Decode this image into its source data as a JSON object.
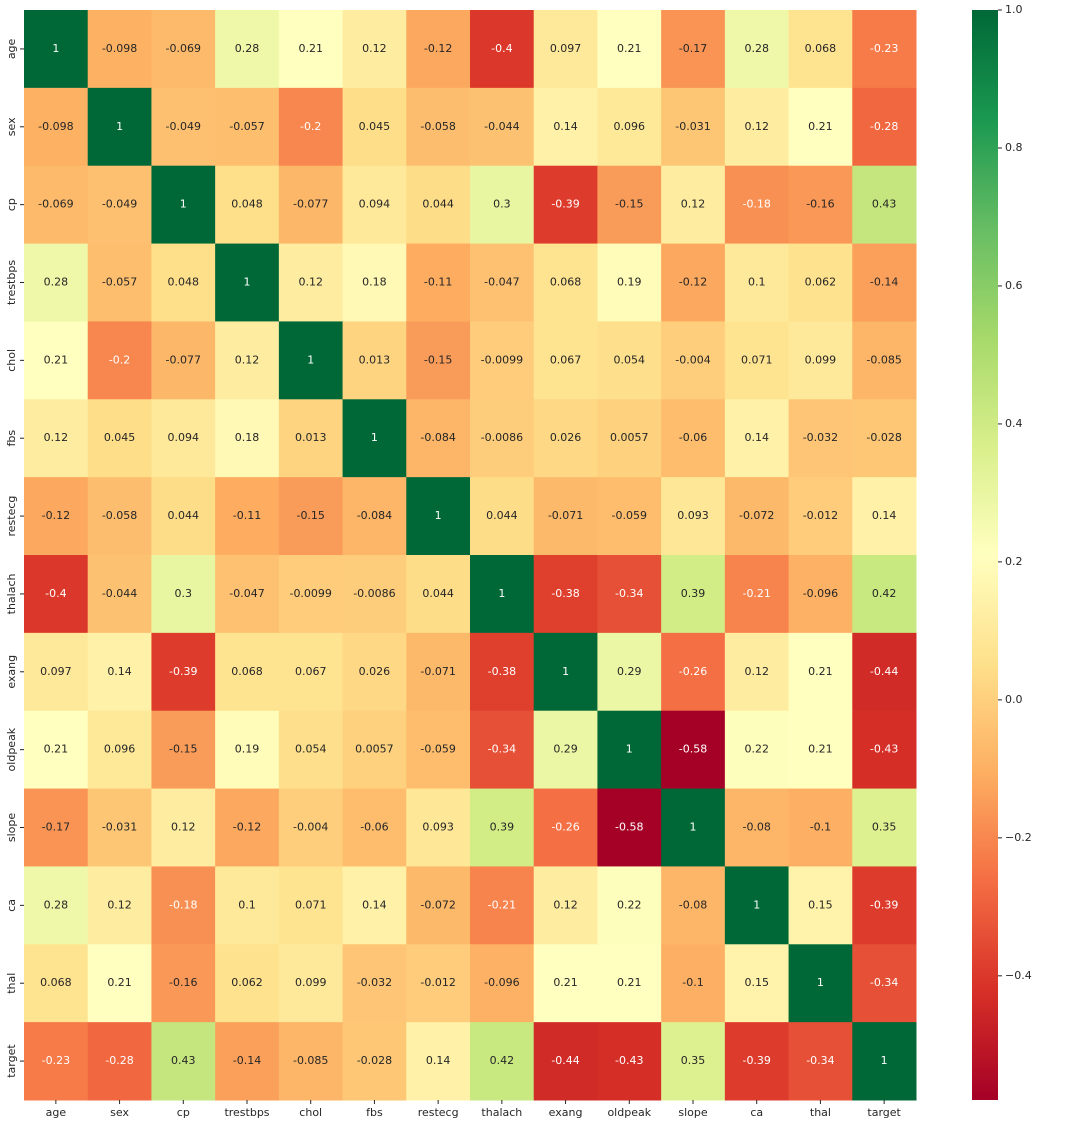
{
  "chart_data": {
    "type": "heatmap",
    "categories": [
      "age",
      "sex",
      "cp",
      "trestbps",
      "chol",
      "fbs",
      "restecg",
      "thalach",
      "exang",
      "oldpeak",
      "slope",
      "ca",
      "thal",
      "target"
    ],
    "values": [
      [
        1,
        -0.098,
        -0.069,
        0.28,
        0.21,
        0.12,
        -0.12,
        -0.4,
        0.097,
        0.21,
        -0.17,
        0.28,
        0.068,
        -0.23
      ],
      [
        -0.098,
        1,
        -0.049,
        -0.057,
        -0.2,
        0.045,
        -0.058,
        -0.044,
        0.14,
        0.096,
        -0.031,
        0.12,
        0.21,
        -0.28
      ],
      [
        -0.069,
        -0.049,
        1,
        0.048,
        -0.077,
        0.094,
        0.044,
        0.3,
        -0.39,
        -0.15,
        0.12,
        -0.18,
        -0.16,
        0.43
      ],
      [
        0.28,
        -0.057,
        0.048,
        1,
        0.12,
        0.18,
        -0.11,
        -0.047,
        0.068,
        0.19,
        -0.12,
        0.1,
        0.062,
        -0.14
      ],
      [
        0.21,
        -0.2,
        -0.077,
        0.12,
        1,
        0.013,
        -0.15,
        -0.0099,
        0.067,
        0.054,
        -0.004,
        0.071,
        0.099,
        -0.085
      ],
      [
        0.12,
        0.045,
        0.094,
        0.18,
        0.013,
        1,
        -0.084,
        -0.0086,
        0.026,
        0.0057,
        -0.06,
        0.14,
        -0.032,
        -0.028
      ],
      [
        -0.12,
        -0.058,
        0.044,
        -0.11,
        -0.15,
        -0.084,
        1,
        0.044,
        -0.071,
        -0.059,
        0.093,
        -0.072,
        -0.012,
        0.14
      ],
      [
        -0.4,
        -0.044,
        0.3,
        -0.047,
        -0.0099,
        -0.0086,
        0.044,
        1,
        -0.38,
        -0.34,
        0.39,
        -0.21,
        -0.096,
        0.42
      ],
      [
        0.097,
        0.14,
        -0.39,
        0.068,
        0.067,
        0.026,
        -0.071,
        -0.38,
        1,
        0.29,
        -0.26,
        0.12,
        0.21,
        -0.44
      ],
      [
        0.21,
        0.096,
        -0.15,
        0.19,
        0.054,
        0.0057,
        -0.059,
        -0.34,
        0.29,
        1,
        -0.58,
        0.22,
        0.21,
        -0.43
      ],
      [
        -0.17,
        -0.031,
        0.12,
        -0.12,
        -0.004,
        -0.06,
        0.093,
        0.39,
        -0.26,
        -0.58,
        1,
        -0.08,
        -0.1,
        0.35
      ],
      [
        0.28,
        0.12,
        -0.18,
        0.1,
        0.071,
        0.14,
        -0.072,
        -0.21,
        0.12,
        0.22,
        -0.08,
        1,
        0.15,
        -0.39
      ],
      [
        0.068,
        0.21,
        -0.16,
        0.062,
        0.099,
        -0.032,
        -0.012,
        -0.096,
        0.21,
        0.21,
        -0.1,
        0.15,
        1,
        -0.34
      ],
      [
        -0.23,
        -0.28,
        0.43,
        -0.14,
        -0.085,
        -0.028,
        0.14,
        0.42,
        -0.44,
        -0.43,
        0.35,
        -0.39,
        -0.34,
        1
      ]
    ],
    "clim": [
      -0.58,
      1
    ],
    "colorscale": [
      "#a50026",
      "#d73027",
      "#f46d43",
      "#fdae61",
      "#fee08b",
      "#ffffbf",
      "#d9ef8b",
      "#a6d96a",
      "#66bd63",
      "#1a9850",
      "#006837"
    ],
    "cticks": [
      {
        "value": 1,
        "label": "1.0"
      },
      0.8,
      0.6,
      0.4,
      0.2,
      {
        "value": 0,
        "label": "0.0"
      },
      {
        "value": -0.2,
        "label": "−0.2"
      },
      {
        "value": -0.4,
        "label": "−0.4"
      }
    ]
  }
}
